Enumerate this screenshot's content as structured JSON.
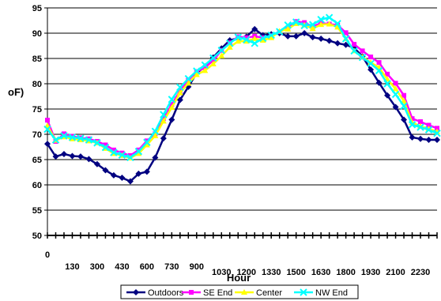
{
  "chart_data": {
    "type": "line",
    "xlabel": "Hour",
    "ylabel": "oF)",
    "ylim": [
      50,
      95
    ],
    "yticks": [
      50,
      55,
      60,
      65,
      70,
      75,
      80,
      85,
      90,
      95
    ],
    "grid": true,
    "legend_placement": "bottom",
    "x_tick_labels": [
      {
        "i": 0,
        "label": "0"
      },
      {
        "i": 3,
        "label": "130"
      },
      {
        "i": 6,
        "label": "300"
      },
      {
        "i": 9,
        "label": "430"
      },
      {
        "i": 12,
        "label": "600"
      },
      {
        "i": 15,
        "label": "730"
      },
      {
        "i": 18,
        "label": "900"
      },
      {
        "i": 21,
        "label": "1030"
      },
      {
        "i": 24,
        "label": "1200"
      },
      {
        "i": 27,
        "label": "1330"
      },
      {
        "i": 30,
        "label": "1500"
      },
      {
        "i": 33,
        "label": "1630"
      },
      {
        "i": 36,
        "label": "1800"
      },
      {
        "i": 39,
        "label": "1930"
      },
      {
        "i": 42,
        "label": "2100"
      },
      {
        "i": 45,
        "label": "2230"
      }
    ],
    "series": [
      {
        "name": "Outdoors",
        "color": "#000080",
        "marker": "diamond",
        "values": [
          68.1,
          65.6,
          66.1,
          65.7,
          65.6,
          65.1,
          64.1,
          62.9,
          61.9,
          61.4,
          60.7,
          62.2,
          62.6,
          65.4,
          69.2,
          72.9,
          76.8,
          79.4,
          82.1,
          83.4,
          85.2,
          87.0,
          88.6,
          89.0,
          89.3,
          90.8,
          89.6,
          89.8,
          90.0,
          89.4,
          89.4,
          90.0,
          89.2,
          88.9,
          88.5,
          88.0,
          87.7,
          87.1,
          85.4,
          82.8,
          80.2,
          77.7,
          75.4,
          72.9,
          69.4,
          69.1,
          68.9,
          68.9
        ]
      },
      {
        "name": "SE End",
        "color": "#FF00FF",
        "marker": "square",
        "values": [
          72.8,
          68.6,
          70.1,
          69.6,
          69.3,
          69.1,
          68.6,
          67.9,
          66.9,
          66.3,
          65.8,
          66.9,
          68.7,
          70.1,
          73.1,
          75.9,
          78.6,
          80.7,
          82.4,
          83.2,
          84.6,
          86.6,
          88.1,
          89.3,
          89.1,
          89.4,
          89.1,
          89.5,
          90.3,
          91.0,
          92.3,
          92.1,
          91.3,
          92.0,
          91.8,
          91.6,
          90.1,
          87.8,
          86.5,
          85.3,
          84.2,
          81.9,
          80.1,
          77.7,
          73.1,
          72.5,
          71.8,
          71.2
        ]
      },
      {
        "name": "Center",
        "color": "#FFFF00",
        "marker": "triangle",
        "values": [
          71.7,
          68.8,
          69.5,
          69.1,
          68.9,
          68.7,
          68.3,
          67.2,
          66.2,
          65.8,
          65.3,
          66.2,
          67.9,
          69.7,
          72.6,
          75.3,
          78.2,
          80.1,
          81.8,
          82.6,
          83.9,
          85.5,
          87.2,
          88.4,
          88.4,
          88.9,
          88.6,
          89.1,
          90.4,
          90.8,
          91.9,
          91.6,
          90.9,
          91.7,
          91.8,
          91.2,
          88.9,
          86.5,
          85.3,
          84.2,
          83.2,
          80.9,
          79.0,
          76.6,
          72.3,
          71.6,
          71.1,
          70.5
        ]
      },
      {
        "name": "NW End",
        "color": "#00FFFF",
        "marker": "x",
        "values": [
          71.0,
          68.9,
          69.7,
          69.4,
          69.2,
          68.9,
          68.3,
          67.4,
          66.4,
          65.9,
          65.4,
          66.6,
          68.4,
          70.6,
          73.9,
          76.9,
          79.3,
          81.0,
          82.5,
          83.7,
          85.1,
          86.6,
          88.0,
          89.2,
          88.7,
          88.0,
          89.0,
          89.6,
          90.3,
          91.6,
          92.2,
          91.5,
          91.7,
          92.7,
          93.1,
          91.9,
          88.9,
          86.5,
          85.2,
          84.0,
          82.6,
          80.0,
          77.9,
          75.6,
          71.9,
          71.4,
          70.9,
          70.2
        ]
      }
    ]
  }
}
